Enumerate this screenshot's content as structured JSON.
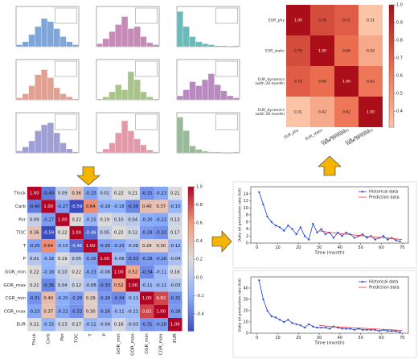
{
  "chart_data": [
    {
      "type": "histogram",
      "color": "#7ea6d8",
      "bins": [
        0,
        1,
        2,
        3,
        4,
        5,
        6,
        7,
        8,
        9,
        10
      ],
      "values": [
        2,
        5,
        12,
        20,
        28,
        25,
        18,
        10,
        5,
        2
      ],
      "xlim": [
        0,
        10
      ],
      "ylim": [
        0,
        40
      ]
    },
    {
      "type": "histogram",
      "color": "#c58ab5",
      "bins": [
        0,
        1,
        2,
        3,
        4,
        5,
        6,
        7,
        8,
        9,
        10
      ],
      "values": [
        3,
        8,
        15,
        22,
        30,
        18,
        20,
        10,
        4,
        2
      ],
      "xlim": [
        0,
        10
      ],
      "ylim": [
        0,
        40
      ]
    },
    {
      "type": "histogram",
      "color": "#6fb8b8",
      "bins": [
        0,
        1,
        2,
        3,
        4,
        5,
        6,
        7,
        8,
        9,
        10
      ],
      "values": [
        35,
        20,
        10,
        5,
        3,
        2,
        1,
        1,
        0,
        1
      ],
      "xlim": [
        0,
        10
      ],
      "ylim": [
        0,
        40
      ]
    },
    {
      "type": "histogram",
      "color": "#e0a092",
      "bins": [
        0,
        1,
        2,
        3,
        4,
        5,
        6,
        7,
        8,
        9,
        10
      ],
      "values": [
        2,
        6,
        14,
        25,
        30,
        22,
        12,
        6,
        3,
        1
      ],
      "xlim": [
        0,
        10
      ],
      "ylim": [
        0,
        40
      ]
    },
    {
      "type": "histogram",
      "color": "#a8c48a",
      "bins": [
        0,
        1,
        2,
        3,
        4,
        5,
        6,
        7,
        8,
        9,
        10
      ],
      "values": [
        1,
        3,
        8,
        15,
        10,
        28,
        20,
        8,
        3,
        1
      ],
      "xlim": [
        0,
        10
      ],
      "ylim": [
        0,
        40
      ]
    },
    {
      "type": "histogram",
      "color": "#b88ac0",
      "bins": [
        0,
        1,
        2,
        3,
        4,
        5,
        6,
        7,
        8,
        9,
        10
      ],
      "values": [
        4,
        10,
        18,
        14,
        20,
        26,
        15,
        9,
        4,
        2
      ],
      "xlim": [
        0,
        10
      ],
      "ylim": [
        0,
        40
      ]
    },
    {
      "type": "histogram",
      "color": "#9f9fd6",
      "bins": [
        0,
        1,
        2,
        3,
        4,
        5,
        6,
        7,
        8,
        9,
        10
      ],
      "values": [
        2,
        6,
        12,
        22,
        28,
        30,
        20,
        10,
        4,
        1
      ],
      "xlim": [
        0,
        10
      ],
      "ylim": [
        0,
        40
      ]
    },
    {
      "type": "histogram",
      "color": "#e39aa8",
      "bins": [
        0,
        1,
        2,
        3,
        4,
        5,
        6,
        7,
        8,
        9,
        10
      ],
      "values": [
        1,
        4,
        10,
        20,
        32,
        22,
        14,
        8,
        3,
        1
      ],
      "xlim": [
        0,
        10
      ],
      "ylim": [
        0,
        40
      ]
    },
    {
      "type": "histogram",
      "color": "#9ab89a",
      "bins": [
        0,
        1,
        2,
        3,
        4,
        5,
        6,
        7,
        8,
        9,
        10
      ],
      "values": [
        40,
        25,
        8,
        4,
        2,
        1,
        1,
        0,
        0,
        1
      ],
      "xlim": [
        0,
        10
      ],
      "ylim": [
        0,
        45
      ]
    },
    {
      "type": "heatmap",
      "colormap": "Reds",
      "clim": [
        0.31,
        1
      ],
      "x_labels": [
        "EUR_phy",
        "EUR_static",
        [
          "EUR_dynamics",
          "(with 20-month)"
        ],
        [
          "EUR_dynamics",
          "(with 30-month)"
        ]
      ],
      "y_labels": [
        "EUR_phy",
        "EUR_static",
        [
          "EUR_dynamics",
          "(with 20-month)"
        ],
        [
          "EUR_dynamics",
          "(with 30-month)"
        ]
      ],
      "values": [
        [
          1,
          0.78,
          0.72,
          0.31
        ],
        [
          0.78,
          1,
          0.66,
          0.42
        ],
        [
          0.72,
          0.66,
          1,
          0.62
        ],
        [
          0.31,
          0.42,
          0.62,
          1
        ]
      ],
      "value_labels": [
        [
          "1.00",
          "0.78",
          "0.72",
          "0.31"
        ],
        [
          "0.78",
          "1.00",
          "0.66",
          "0.42"
        ],
        [
          "0.72",
          "0.66",
          "1.00",
          "0.62"
        ],
        [
          "0.31",
          "0.42",
          "0.62",
          "1.00"
        ]
      ],
      "colorbar_ticks": [
        0.4,
        0.5,
        0.6,
        0.7,
        0.8,
        0.9,
        {
          "value": 1,
          "label": "1.0"
        }
      ]
    },
    {
      "type": "heatmap",
      "colormap": "coolwarm",
      "clim": [
        -0.59,
        1
      ],
      "x_labels": [
        "Thick",
        "Carb",
        "Por",
        "TOC",
        "T",
        "P",
        "GOR_min",
        "GOR_max",
        "CGR_min",
        "CGR_max",
        "EUR"
      ],
      "y_labels": [
        "Thick",
        "Carb",
        "Por",
        "TOC",
        "T",
        "P",
        "GOR_min",
        "GOR_max",
        "CGR_min",
        "CGR_max",
        "EUR"
      ],
      "values": [
        [
          1,
          -0.4,
          0.09,
          0.36,
          -0.25,
          0.01,
          0.22,
          0.21,
          -0.31,
          -0.23,
          0.21
        ],
        [
          -0.4,
          1,
          -0.27,
          -0.59,
          0.64,
          -0.18,
          -0.18,
          -0.36,
          0.4,
          0.37,
          -0.15
        ],
        [
          0.09,
          -0.27,
          1,
          0.22,
          -0.15,
          0.19,
          0.1,
          0.04,
          -0.2,
          -0.22,
          0.13
        ],
        [
          0.36,
          -0.59,
          0.22,
          1,
          -0.46,
          0.05,
          0.22,
          0.12,
          -0.28,
          -0.32,
          0.17
        ],
        [
          -0.25,
          0.64,
          -0.15,
          -0.46,
          1,
          -0.26,
          -0.23,
          -0.08,
          0.29,
          0.3,
          -0.12
        ],
        [
          0.01,
          -0.18,
          0.19,
          0.05,
          -0.26,
          1,
          -0.08,
          -0.33,
          -0.28,
          -0.26,
          -0.04
        ],
        [
          0.22,
          -0.18,
          0.1,
          0.22,
          -0.23,
          -0.08,
          1,
          0.52,
          -0.34,
          -0.11,
          0.16
        ],
        [
          0.21,
          -0.36,
          0.04,
          0.12,
          -0.08,
          -0.33,
          0.52,
          1,
          -0.11,
          -0.11,
          -0.03
        ],
        [
          -0.31,
          0.4,
          -0.2,
          -0.28,
          0.29,
          -0.28,
          -0.34,
          -0.11,
          1,
          0.82,
          -0.31
        ],
        [
          -0.23,
          0.37,
          -0.22,
          -0.32,
          0.3,
          -0.26,
          -0.11,
          -0.11,
          0.82,
          1,
          -0.28
        ],
        [
          0.21,
          -0.15,
          0.13,
          0.17,
          -0.12,
          -0.04,
          0.16,
          -0.03,
          -0.31,
          -0.28,
          1
        ]
      ],
      "value_labels": [
        [
          "1.00",
          "-0.40",
          "0.09",
          "0.36",
          "-0.25",
          "0.01",
          "0.22",
          "0.21",
          "-0.31",
          "-0.23",
          "0.21"
        ],
        [
          "-0.40",
          "1.00",
          "-0.27",
          "-0.59",
          "0.64",
          "-0.18",
          "-0.18",
          "-0.36",
          "0.40",
          "0.37",
          "-0.15"
        ],
        [
          "0.09",
          "-0.27",
          "1.00",
          "0.22",
          "-0.15",
          "0.19",
          "0.10",
          "0.04",
          "-0.20",
          "-0.22",
          "0.13"
        ],
        [
          "0.36",
          "-0.59",
          "0.22",
          "1.00",
          "-0.46",
          "0.05",
          "0.22",
          "0.12",
          "-0.28",
          "-0.32",
          "0.17"
        ],
        [
          "-0.25",
          "0.64",
          "-0.15",
          "-0.46",
          "1.00",
          "-0.26",
          "-0.23",
          "-0.08",
          "0.29",
          "0.30",
          "-0.12"
        ],
        [
          "0.01",
          "-0.18",
          "0.19",
          "0.05",
          "-0.26",
          "1.00",
          "-0.08",
          "-0.33",
          "-0.28",
          "-0.26",
          "-0.04"
        ],
        [
          "0.22",
          "-0.18",
          "0.10",
          "0.22",
          "-0.23",
          "-0.08",
          "1.00",
          "0.52",
          "-0.34",
          "-0.11",
          "0.16"
        ],
        [
          "0.21",
          "-0.36",
          "0.04",
          "0.12",
          "-0.08",
          "-0.33",
          "0.52",
          "1.00",
          "-0.11",
          "-0.11",
          "-0.03"
        ],
        [
          "-0.31",
          "0.40",
          "-0.20",
          "-0.28",
          "0.29",
          "-0.28",
          "-0.34",
          "-0.11",
          "1.00",
          "0.82",
          "-0.31"
        ],
        [
          "-0.23",
          "0.37",
          "-0.22",
          "-0.32",
          "0.30",
          "-0.26",
          "-0.11",
          "-0.11",
          "0.82",
          "1.00",
          "-0.28"
        ],
        [
          "0.21",
          "-0.15",
          "0.13",
          "0.17",
          "-0.12",
          "-0.04",
          "0.16",
          "-0.03",
          "-0.31",
          "-0.28",
          "1.00"
        ]
      ],
      "colorbar_ticks": [
        -0.4,
        -0.2,
        {
          "value": 0,
          "label": "0.0"
        },
        0.2,
        0.4,
        0.6,
        0.8,
        {
          "value": 1,
          "label": "1.0"
        }
      ]
    },
    {
      "type": "line",
      "x_label": "Time (month)",
      "y_label": "Daily oil production rate (t/d)",
      "legend": "upper right",
      "xlim": [
        -3,
        73
      ],
      "ylim": [
        0,
        16
      ],
      "xticks": [
        0,
        10,
        20,
        30,
        40,
        50,
        60,
        70
      ],
      "yticks": [
        0,
        2,
        4,
        6,
        8,
        10,
        12,
        14
      ],
      "series": [
        {
          "name": "Historical data",
          "color": "#1f3fd6",
          "marker": true,
          "x": [
            1,
            3,
            5,
            7,
            9,
            11,
            13,
            15,
            17,
            19,
            21,
            23,
            25,
            27,
            29,
            31,
            33,
            35,
            37,
            39,
            41,
            43,
            45,
            47,
            49,
            51,
            53,
            55,
            57,
            59,
            61,
            63,
            65,
            67,
            69
          ],
          "values": [
            14.5,
            11,
            7.5,
            6,
            5,
            4.5,
            3.5,
            5,
            4,
            2.5,
            4.5,
            2,
            1,
            5.5,
            3,
            4,
            2.5,
            3,
            1.5,
            3,
            2,
            3,
            2.5,
            1.5,
            2,
            2.5,
            1.5,
            2,
            1,
            1.5,
            2,
            1,
            1.5,
            0.8,
            0.5
          ]
        },
        {
          "name": "Prediction data",
          "color": "#e53030",
          "marker": false,
          "x": [
            30,
            35,
            40,
            45,
            50,
            55,
            60,
            65,
            70
          ],
          "values": [
            3.5,
            3,
            2.7,
            2.4,
            2.1,
            1.8,
            1.6,
            1.3,
            1
          ]
        }
      ]
    },
    {
      "type": "line",
      "x_label": "Time (month)",
      "y_label": "Daily oil production rate (t/d)",
      "legend": "upper right",
      "xlim": [
        -3,
        73
      ],
      "ylim": [
        0,
        50
      ],
      "xticks": [
        0,
        10,
        20,
        30,
        40,
        50,
        60,
        70
      ],
      "yticks": [
        0,
        10,
        20,
        30,
        40
      ],
      "series": [
        {
          "name": "Historical data",
          "color": "#1f3fd6",
          "marker": true,
          "x": [
            1,
            3,
            5,
            7,
            9,
            11,
            13,
            15,
            17,
            19,
            21,
            23,
            25,
            27,
            29,
            31,
            33,
            35,
            37,
            39,
            41,
            43,
            45,
            47,
            49,
            51,
            53,
            55,
            57,
            59,
            61,
            63,
            65,
            67,
            69
          ],
          "values": [
            47,
            30,
            20,
            15,
            14,
            12,
            10,
            12,
            9,
            8,
            7,
            5,
            8,
            6,
            5,
            5,
            5,
            4,
            6,
            5,
            4,
            4,
            4,
            3,
            4,
            3,
            3,
            3,
            3,
            2,
            3,
            2,
            2,
            2,
            1
          ]
        },
        {
          "name": "Prediction data",
          "color": "#e53030",
          "marker": false,
          "x": [
            30,
            35,
            40,
            45,
            50,
            55,
            60,
            65,
            70
          ],
          "values": [
            7,
            6,
            5.5,
            5,
            4.5,
            4,
            3.5,
            3,
            2.5
          ]
        }
      ]
    }
  ]
}
